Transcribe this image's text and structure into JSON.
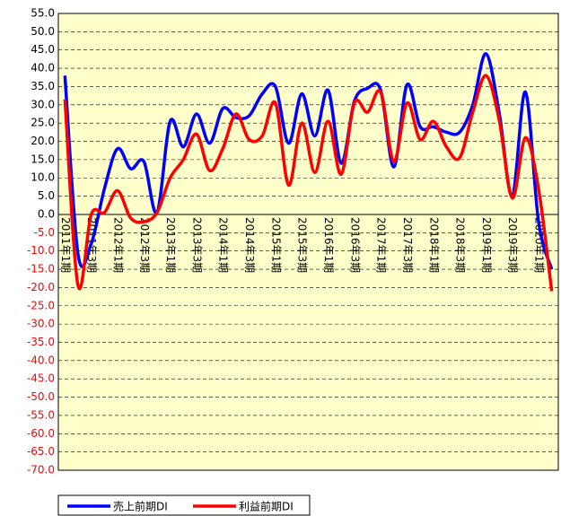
{
  "chart_data": {
    "type": "line",
    "categories": [
      "2011年1期",
      null,
      "2011年3期",
      null,
      "2012年1期",
      null,
      "2012年3期",
      null,
      "2013年1期",
      null,
      "2013年3期",
      null,
      "2014年1期",
      null,
      "2014年3期",
      null,
      "2015年1期",
      null,
      "2015年3期",
      null,
      "2016年1期",
      null,
      "2016年3期",
      null,
      "2017年1期",
      null,
      "2017年3期",
      null,
      "2018年1期",
      null,
      "2018年3期",
      null,
      "2019年1期",
      null,
      "2019年3期",
      null,
      "2020年1期",
      null
    ],
    "series": [
      {
        "name": "売上前期DI",
        "color": "#0000ff",
        "values": [
          38,
          -11,
          -8,
          7,
          18,
          12.5,
          14.5,
          0.5,
          25.5,
          18.5,
          27.5,
          19.5,
          29,
          26.5,
          27,
          33,
          35,
          19.5,
          33,
          21.5,
          34,
          14,
          31,
          34.5,
          34,
          13,
          35.5,
          24,
          24,
          22.5,
          22.5,
          30,
          44,
          28,
          5,
          33.5,
          -2,
          -15
        ]
      },
      {
        "name": "利益前期DI",
        "color": "#ff0000",
        "values": [
          31.5,
          -19.5,
          0,
          0.5,
          6.5,
          -1,
          -2,
          0.5,
          10,
          15,
          22,
          12,
          18,
          27.5,
          20.5,
          21.5,
          30.5,
          8,
          25,
          11.5,
          25.5,
          11,
          30.5,
          28,
          33.5,
          14.5,
          30.5,
          20.5,
          25.5,
          18.5,
          15.5,
          28,
          38,
          26,
          4.5,
          21,
          7,
          -21
        ]
      }
    ],
    "ylim": [
      -70,
      55
    ],
    "yticks": [
      {
        "value": -70,
        "label": "-70.0"
      },
      {
        "value": -65,
        "label": "-65.0"
      },
      {
        "value": -60,
        "label": "-60.0"
      },
      {
        "value": -55,
        "label": "-55.0"
      },
      {
        "value": -50,
        "label": "-50.0"
      },
      {
        "value": -45,
        "label": "-45.0"
      },
      {
        "value": -40,
        "label": "-40.0"
      },
      {
        "value": -35,
        "label": "-35.0"
      },
      {
        "value": -30,
        "label": "-30.0"
      },
      {
        "value": -25,
        "label": "-25.0"
      },
      {
        "value": -20,
        "label": "-20.0"
      },
      {
        "value": -15,
        "label": "-15.0"
      },
      {
        "value": -10,
        "label": "-10.0"
      },
      {
        "value": -5,
        "label": "-5.0"
      },
      {
        "value": 0,
        "label": "0.0"
      },
      {
        "value": 5,
        "label": "5.0"
      },
      {
        "value": 10,
        "label": "10.0"
      },
      {
        "value": 15,
        "label": "15.0"
      },
      {
        "value": 20,
        "label": "20.0"
      },
      {
        "value": 25,
        "label": "25.0"
      },
      {
        "value": 30,
        "label": "30.0"
      },
      {
        "value": 35,
        "label": "35.0"
      },
      {
        "value": 40,
        "label": "40.0"
      },
      {
        "value": 45,
        "label": "45.0"
      },
      {
        "value": 50,
        "label": "50.0"
      },
      {
        "value": 55,
        "label": "55.0"
      }
    ],
    "grid": true,
    "legend": "bottom"
  }
}
